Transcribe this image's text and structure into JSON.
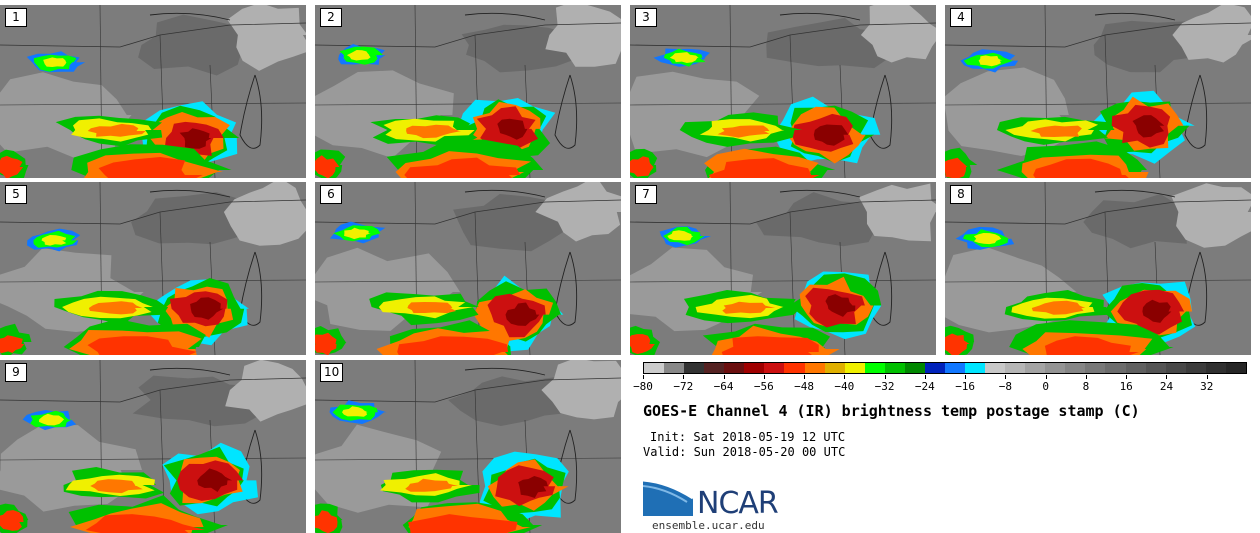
{
  "panels": [
    {
      "label": "1",
      "seed": 1
    },
    {
      "label": "2",
      "seed": 2
    },
    {
      "label": "3",
      "seed": 3
    },
    {
      "label": "4",
      "seed": 4
    },
    {
      "label": "5",
      "seed": 5
    },
    {
      "label": "6",
      "seed": 6
    },
    {
      "label": "7",
      "seed": 7
    },
    {
      "label": "8",
      "seed": 8
    },
    {
      "label": "9",
      "seed": 9
    },
    {
      "label": "10",
      "seed": 10
    }
  ],
  "colorbar": {
    "min": -80,
    "max": 40,
    "ticks": [
      -80,
      -72,
      -64,
      -56,
      -48,
      -40,
      -32,
      -24,
      -16,
      -8,
      0,
      8,
      16,
      24,
      32
    ],
    "tick_labels": [
      "−80",
      "−72",
      "−64",
      "−56",
      "−48",
      "−40",
      "−32",
      "−24",
      "−16",
      "−8",
      "0",
      "8",
      "16",
      "24",
      "32"
    ],
    "colors": [
      "#cccccc",
      "#888888",
      "#333333",
      "#552222",
      "#6b0f0f",
      "#a00000",
      "#cc1010",
      "#ff3300",
      "#ff7700",
      "#e0b000",
      "#f0f000",
      "#00ff00",
      "#00c000",
      "#008800",
      "#0022bb",
      "#1177ff",
      "#00e5ff",
      "#c8c8c8",
      "#b6b6b6",
      "#a4a4a4",
      "#949494",
      "#868686",
      "#787878",
      "#6c6c6c",
      "#606060",
      "#545454",
      "#484848",
      "#3c3c3c",
      "#303030",
      "#262626"
    ]
  },
  "title": "GOES-E Channel 4 (IR) brightness temp postage stamp (C)",
  "init": "Init: Sat 2018-05-19 12 UTC",
  "valid": "Valid: Sun 2018-05-20 00 UTC",
  "logo": {
    "text": "NCAR",
    "site": "ensemble.ucar.edu",
    "color": "#1f3f77"
  }
}
